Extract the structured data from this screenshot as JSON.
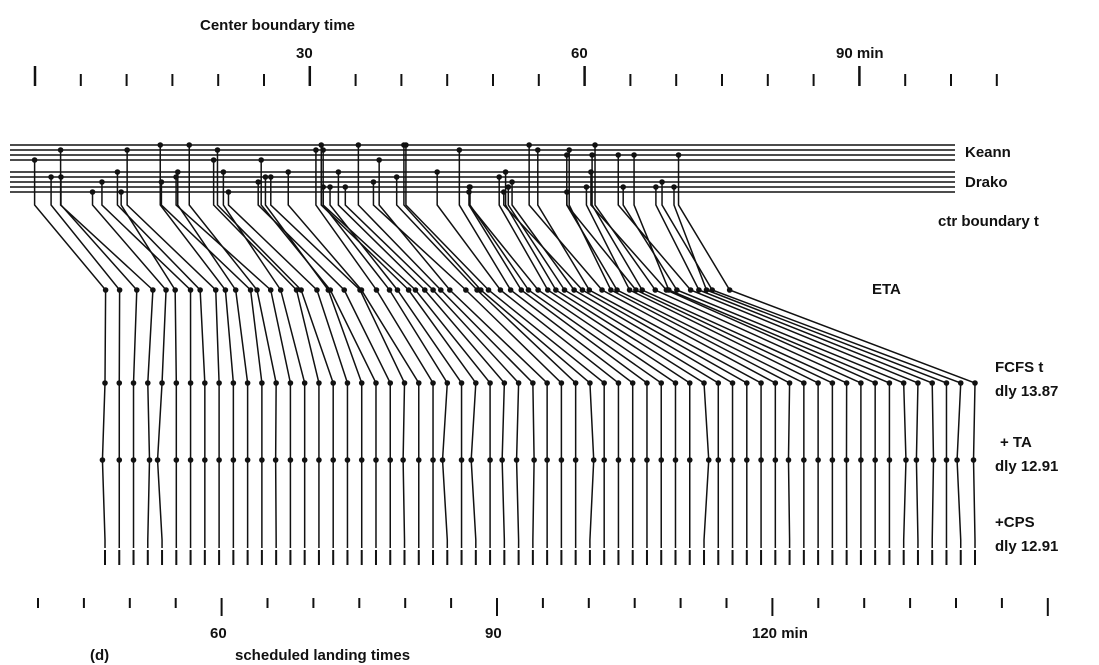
{
  "title": "Center boundary time",
  "top_axis": {
    "labels": [
      "30",
      "60",
      "90 min"
    ]
  },
  "streams": [
    "Keann",
    "Drako"
  ],
  "levels": {
    "boundary": "ctr boundary t",
    "eta": "ETA",
    "fcfs": "FCFS t",
    "fcfs_delay": "dly 13.87",
    "ta": "+ TA",
    "ta_delay": "dly 12.91",
    "cps": "+CPS",
    "cps_delay": "dly 12.91"
  },
  "panel": "(d)",
  "bottom_axis": {
    "labels": [
      "60",
      "90",
      "120 min"
    ],
    "title": "scheduled landing times"
  }
}
